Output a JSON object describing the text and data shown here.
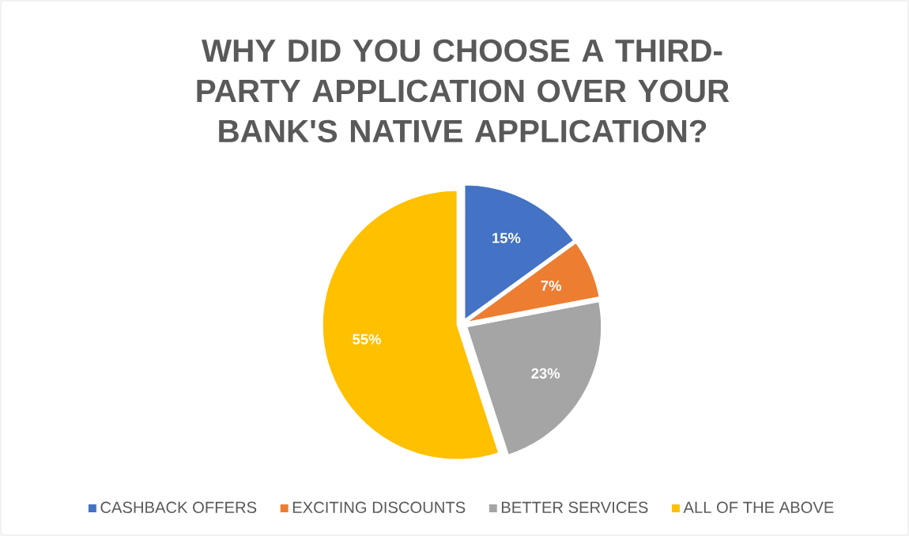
{
  "chart_data": {
    "type": "pie",
    "title": "WHY DID YOU CHOOSE A THIRD-PARTY APPLICATION OVER YOUR BANK'S NATIVE APPLICATION?",
    "categories": [
      "CASHBACK OFFERS",
      "EXCITING DISCOUNTS",
      "BETTER SERVICES",
      "ALL OF THE ABOVE"
    ],
    "values": [
      15,
      7,
      23,
      55
    ],
    "value_labels": [
      "15%",
      "7%",
      "23%",
      "55%"
    ],
    "colors": [
      "#4472c4",
      "#ed7d31",
      "#a5a5a5",
      "#ffc000"
    ],
    "legend": "bottom"
  }
}
